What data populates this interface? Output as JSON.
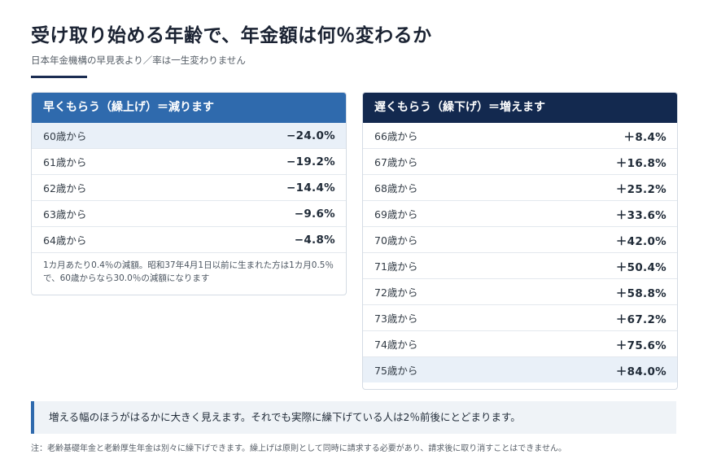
{
  "title": "受け取り始める年齢で、年金額は何％変わるか",
  "subtitle": "日本年金機構の早見表より／率は一生変わりません",
  "early": {
    "header": "早くもらう（繰上げ）＝減ります",
    "rows": [
      {
        "age": "60歳から",
        "rate": "−24.0%"
      },
      {
        "age": "61歳から",
        "rate": "−19.2%"
      },
      {
        "age": "62歳から",
        "rate": "−14.4%"
      },
      {
        "age": "63歳から",
        "rate": "−9.6%"
      },
      {
        "age": "64歳から",
        "rate": "−4.8%"
      }
    ],
    "note": "1カ月あたり0.4％の減額。昭和37年4月1日以前に生まれた方は1カ月0.5％で、60歳からなら30.0％の減額になります"
  },
  "late": {
    "header": "遅くもらう（繰下げ）＝増えます",
    "rows": [
      {
        "age": "66歳から",
        "rate": "＋8.4%"
      },
      {
        "age": "67歳から",
        "rate": "＋16.8%"
      },
      {
        "age": "68歳から",
        "rate": "＋25.2%"
      },
      {
        "age": "69歳から",
        "rate": "＋33.6%"
      },
      {
        "age": "70歳から",
        "rate": "＋42.0%"
      },
      {
        "age": "71歳から",
        "rate": "＋50.4%"
      },
      {
        "age": "72歳から",
        "rate": "＋58.8%"
      },
      {
        "age": "73歳から",
        "rate": "＋67.2%"
      },
      {
        "age": "74歳から",
        "rate": "＋75.6%"
      },
      {
        "age": "75歳から",
        "rate": "＋84.0%"
      }
    ]
  },
  "callout": "増える幅のほうがはるかに大きく見えます。それでも実際に繰下げている人は2％前後にとどまります。",
  "footnote": "注：老齢基礎年金と老齢厚生年金は別々に繰下げできます。繰上げは原則として同時に請求する必要があり、請求後に取り消すことはできません。",
  "colors": {
    "early_header": "#2f6aad",
    "late_header": "#13294f",
    "highlight_row": "#e9f0f8",
    "callout_bar": "#2f6aad"
  }
}
